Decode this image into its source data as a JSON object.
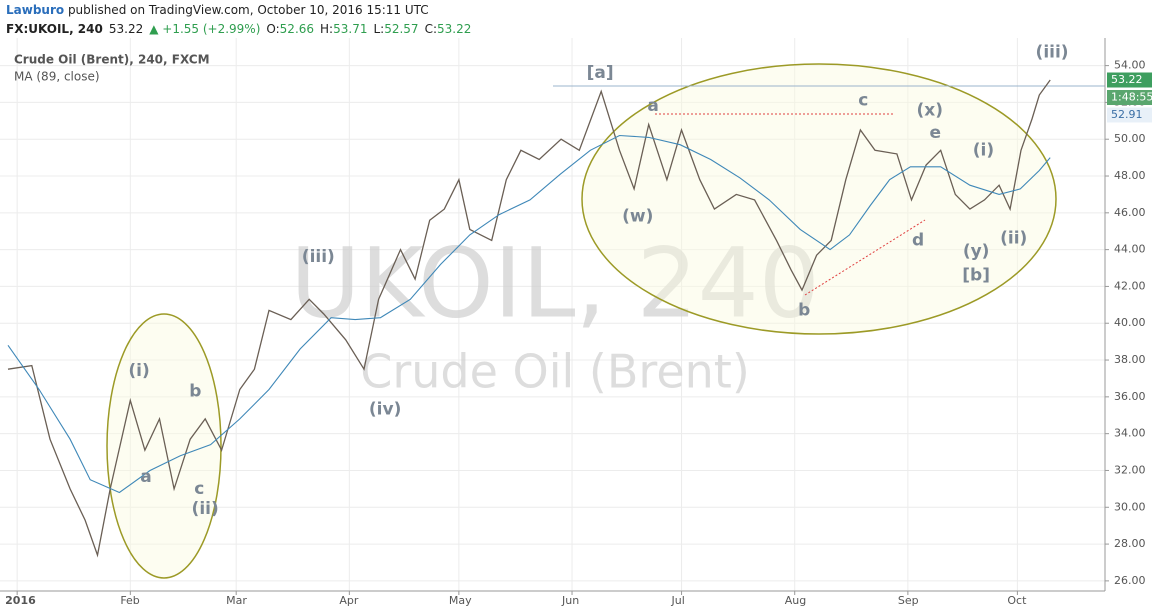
{
  "header": {
    "author": "Lawburo",
    "published": " published on TradingView.com, October 10, 2016 15:11 UTC",
    "symbol": "FX:UKOIL, 240",
    "last": "53.22",
    "change": "▲ +1.55 (+2.99%)",
    "ohlc": [
      {
        "label": "O:",
        "value": "52.66"
      },
      {
        "label": "H:",
        "value": "53.71"
      },
      {
        "label": "L:",
        "value": "52.57"
      },
      {
        "label": "C:",
        "value": "53.22"
      }
    ]
  },
  "chart_data": {
    "type": "line",
    "watermark": [
      "UKOIL, 240",
      "Crude Oil (Brent)"
    ],
    "xlim": [
      -4.7,
      298
    ],
    "ylim": [
      25.45,
      55.5
    ],
    "xticks": [
      {
        "value": 0,
        "label": "2016"
      },
      {
        "value": 31,
        "label": "Feb"
      },
      {
        "value": 60,
        "label": "Mar"
      },
      {
        "value": 91,
        "label": "Apr"
      },
      {
        "value": 121,
        "label": "May"
      },
      {
        "value": 152,
        "label": "Jun"
      },
      {
        "value": 182,
        "label": "Jul"
      },
      {
        "value": 213,
        "label": "Aug"
      },
      {
        "value": 244,
        "label": "Sep"
      },
      {
        "value": 274,
        "label": "Oct"
      }
    ],
    "yticks": [
      {
        "value": 26,
        "label": "26.00"
      },
      {
        "value": 28,
        "label": "28.00"
      },
      {
        "value": 30,
        "label": "30.00"
      },
      {
        "value": 32,
        "label": "32.00"
      },
      {
        "value": 34,
        "label": "34.00"
      },
      {
        "value": 36,
        "label": "36.00"
      },
      {
        "value": 38,
        "label": "38.00"
      },
      {
        "value": 40,
        "label": "40.00"
      },
      {
        "value": 42,
        "label": "42.00"
      },
      {
        "value": 44,
        "label": "44.00"
      },
      {
        "value": 46,
        "label": "46.00"
      },
      {
        "value": 48,
        "label": "48.00"
      },
      {
        "value": 50,
        "label": "50.00"
      },
      {
        "value": 52,
        "label": "52.00"
      },
      {
        "value": 54,
        "label": "54.00"
      }
    ],
    "grid": true,
    "series": [
      {
        "name": "Crude Oil (Brent), 240, FXCM",
        "color": "#6a5f55",
        "x": [
          -2.5,
          4,
          9,
          14.5,
          18.6,
          22,
          25.5,
          31,
          35,
          39,
          43,
          47.4,
          51.5,
          56,
          61,
          65,
          69,
          75,
          80,
          84,
          90,
          95,
          99,
          105,
          109,
          113,
          117,
          121,
          124,
          130,
          134,
          138,
          143,
          149,
          154,
          160,
          165,
          169,
          173,
          178,
          182,
          187,
          191,
          197,
          202,
          208,
          212,
          215,
          219,
          223,
          227,
          231,
          235,
          241,
          245,
          249,
          253,
          257,
          261,
          265,
          269,
          272,
          275,
          278,
          280,
          283
        ],
        "values": [
          37.5,
          37.7,
          33.7,
          31,
          29.3,
          27.4,
          31,
          35.8,
          33.1,
          34.8,
          31,
          33.7,
          34.8,
          33.1,
          36.4,
          37.5,
          40.7,
          40.2,
          41.3,
          40.5,
          39.1,
          37.5,
          41.3,
          44,
          42.4,
          45.6,
          46.2,
          47.8,
          45.1,
          44.5,
          47.8,
          49.4,
          48.9,
          50,
          49.4,
          52.6,
          49.4,
          47.3,
          50.8,
          47.8,
          50.5,
          47.8,
          46.2,
          47,
          46.7,
          44.5,
          42.9,
          41.8,
          43.7,
          44.5,
          47.8,
          50.5,
          49.4,
          49.2,
          46.7,
          48.6,
          49.4,
          47,
          46.2,
          46.7,
          47.5,
          46.2,
          49.4,
          51.1,
          52.4,
          53.22
        ]
      },
      {
        "name": "MA (89, close)",
        "color": "#3f88b8",
        "x": [
          -2.5,
          6,
          14.5,
          20,
          28,
          36.4,
          44.7,
          53,
          61,
          69,
          77.5,
          86,
          92.6,
          99.5,
          107.7,
          116,
          124,
          132,
          140.5,
          148.8,
          157,
          165,
          173,
          181.6,
          190,
          198,
          206,
          214.5,
          222.7,
          228,
          233.7,
          239,
          244.7,
          253,
          261,
          269,
          274.8,
          280,
          283
        ],
        "values": [
          38.8,
          36.4,
          33.7,
          31.5,
          30.8,
          32,
          32.8,
          33.4,
          34.8,
          36.4,
          38.6,
          40.3,
          40.2,
          40.3,
          41.3,
          43.2,
          44.8,
          45.9,
          46.7,
          48.1,
          49.4,
          50.2,
          50.1,
          49.7,
          48.9,
          47.9,
          46.7,
          45.1,
          44,
          44.8,
          46.4,
          47.8,
          48.5,
          48.5,
          47.5,
          47,
          47.3,
          48.3,
          49
        ]
      }
    ],
    "price_labels": [
      {
        "text": "53.22",
        "fill": "#3e9e5f",
        "color": "#ffffff"
      },
      {
        "text": "1:48:55",
        "fill": "#5aa66e",
        "color": "#ffffff"
      },
      {
        "text": "52.91",
        "fill": "#e8f0f8",
        "color": "#3a6ea5"
      }
    ],
    "annotations": [
      {
        "text": "(i)",
        "x": 33.4,
        "y": 37.4
      },
      {
        "text": "a",
        "x": 35.3,
        "y": 31.65
      },
      {
        "text": "b",
        "x": 48.8,
        "y": 36.3
      },
      {
        "text": "c",
        "x": 49.9,
        "y": 31
      },
      {
        "text": "(ii)",
        "x": 51.5,
        "y": 29.9
      },
      {
        "text": "(iii)",
        "x": 82.5,
        "y": 43.6
      },
      {
        "text": "(iv)",
        "x": 100.8,
        "y": 35.3
      },
      {
        "text": "[a]",
        "x": 159.7,
        "y": 53.6
      },
      {
        "text": "a",
        "x": 174.2,
        "y": 51.8
      },
      {
        "text": "(w)",
        "x": 170,
        "y": 45.8
      },
      {
        "text": "b",
        "x": 215.6,
        "y": 40.7
      },
      {
        "text": "c",
        "x": 231.8,
        "y": 52.1
      },
      {
        "text": "(x)",
        "x": 250,
        "y": 51.55
      },
      {
        "text": "e",
        "x": 251.5,
        "y": 50.35
      },
      {
        "text": "d",
        "x": 246.8,
        "y": 44.5
      },
      {
        "text": "(i)",
        "x": 264.7,
        "y": 49.4
      },
      {
        "text": "(y)",
        "x": 262.7,
        "y": 43.9
      },
      {
        "text": "[b]",
        "x": 262.7,
        "y": 42.6
      },
      {
        "text": "(ii)",
        "x": 273,
        "y": 44.6
      },
      {
        "text": "(iii)",
        "x": 283.5,
        "y": 54.7
      }
    ]
  }
}
